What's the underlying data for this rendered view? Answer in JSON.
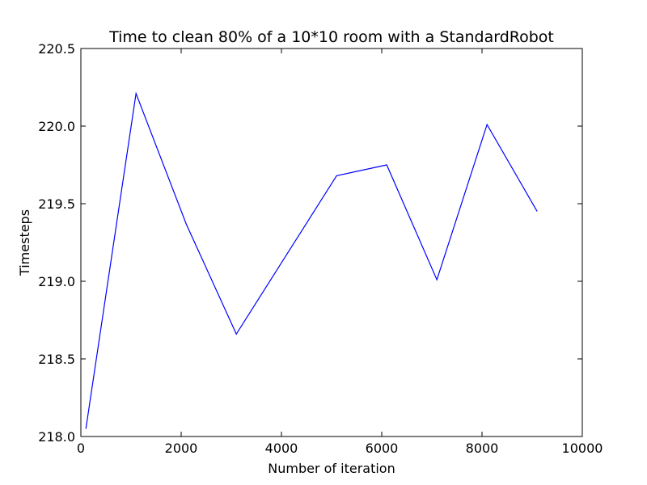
{
  "chart_data": {
    "type": "line",
    "title": "Time to clean 80% of a 10*10 room with a StandardRobot",
    "xlabel": "Number of iteration",
    "ylabel": "Timesteps",
    "xlim": [
      0,
      10000
    ],
    "ylim": [
      218.0,
      220.5
    ],
    "xticks": [
      "0",
      "2000",
      "4000",
      "6000",
      "8000",
      "10000"
    ],
    "yticks": [
      "218.0",
      "218.5",
      "219.0",
      "219.5",
      "220.0",
      "220.5"
    ],
    "grid": false,
    "line_color": "#0000ff",
    "series": [
      {
        "x": [
          100,
          1100,
          2100,
          3100,
          4100,
          5100,
          6100,
          7100,
          8100,
          9100
        ],
        "y": [
          218.05,
          220.21,
          219.37,
          218.66,
          219.17,
          219.68,
          219.75,
          219.01,
          220.01,
          219.45
        ]
      }
    ]
  }
}
